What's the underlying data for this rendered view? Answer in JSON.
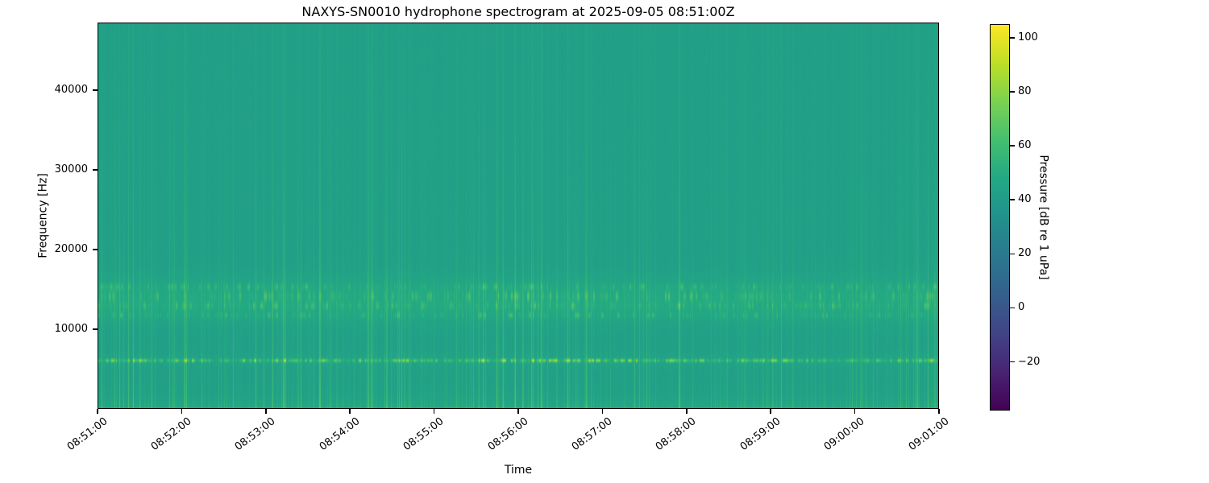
{
  "chart_data": {
    "type": "heatmap",
    "subtype": "spectrogram",
    "title": "NAXYS-SN0010 hydrophone spectrogram at 2025-09-05 08:51:00Z",
    "xlabel": "Time",
    "ylabel": "Frequency [Hz]",
    "x_start": "08:51:00",
    "x_end": "09:01:00",
    "duration_seconds": 600,
    "x_tick_labels": [
      "08:51:00",
      "08:52:00",
      "08:53:00",
      "08:54:00",
      "08:55:00",
      "08:56:00",
      "08:57:00",
      "08:58:00",
      "08:59:00",
      "09:00:00",
      "09:01:00"
    ],
    "y_ticks": [
      10000,
      20000,
      30000,
      40000
    ],
    "y_tick_labels": [
      "10000",
      "20000",
      "30000",
      "40000"
    ],
    "ylim": [
      0,
      48500
    ],
    "grid": false,
    "legend": "none",
    "colorbar": {
      "label": "Pressure [dB re 1 uPa]",
      "position": "right",
      "ticks": [
        100,
        80,
        60,
        40,
        20,
        0,
        -20
      ],
      "tick_labels": [
        "100",
        "80",
        "60",
        "40",
        "20",
        "0",
        "−20"
      ],
      "vmin": -38,
      "vmax": 105
    },
    "colormap": {
      "name": "viridis",
      "stops": [
        [
          0,
          "#440154"
        ],
        [
          0.1,
          "#482475"
        ],
        [
          0.2,
          "#414487"
        ],
        [
          0.3,
          "#355f8d"
        ],
        [
          0.4,
          "#2a788e"
        ],
        [
          0.5,
          "#21918c"
        ],
        [
          0.6,
          "#22a884"
        ],
        [
          0.7,
          "#44bf70"
        ],
        [
          0.8,
          "#7ad151"
        ],
        [
          0.9,
          "#bddf26"
        ],
        [
          1,
          "#fde725"
        ]
      ]
    },
    "background_level_db": 43,
    "features": {
      "description": "Near-uniform ~43 dB teal background; persistent bright tonal line at ~6 kHz; speckled tonal bands between ~11.5 and 15.5 kHz; brighter low-frequency strip below ~1 kHz; broadband vertical transient streaks clustered in time, fading toward high frequency",
      "tonal_bands": [
        {
          "center_hz": 6000,
          "halfwidth_hz": 160,
          "peak_boost_db": 42,
          "diffuse_boost_db": 1.5
        },
        {
          "center_hz": 11700,
          "halfwidth_hz": 260,
          "peak_boost_db": 15,
          "diffuse_boost_db": 1.5
        },
        {
          "center_hz": 12900,
          "halfwidth_hz": 320,
          "peak_boost_db": 18,
          "diffuse_boost_db": 2.0
        },
        {
          "center_hz": 14100,
          "halfwidth_hz": 420,
          "peak_boost_db": 20,
          "diffuse_boost_db": 2.5
        },
        {
          "center_hz": 15300,
          "halfwidth_hz": 280,
          "peak_boost_db": 15,
          "diffuse_boost_db": 1.5
        }
      ],
      "low_band": {
        "cutoff_hz": 900,
        "boost_db": 7
      },
      "transient_max_boost_db": 26,
      "transient_clusters": [
        {
          "time": "08:51:10",
          "strength": 0.7
        },
        {
          "time": "08:51:25",
          "strength": 0.6
        },
        {
          "time": "08:52:00",
          "strength": 0.7
        },
        {
          "time": "08:52:50",
          "strength": 0.6
        },
        {
          "time": "08:53:05",
          "strength": 0.7
        },
        {
          "time": "08:53:30",
          "strength": 1.0
        },
        {
          "time": "08:54:10",
          "strength": 0.6
        },
        {
          "time": "08:54:35",
          "strength": 0.6
        },
        {
          "time": "08:55:35",
          "strength": 0.7
        },
        {
          "time": "08:55:50",
          "strength": 1.0
        },
        {
          "time": "08:56:10",
          "strength": 0.8
        },
        {
          "time": "08:56:30",
          "strength": 1.0
        },
        {
          "time": "08:56:50",
          "strength": 0.7
        },
        {
          "time": "08:57:20",
          "strength": 0.9
        },
        {
          "time": "08:57:50",
          "strength": 0.8
        },
        {
          "time": "08:58:05",
          "strength": 0.9
        },
        {
          "time": "08:58:45",
          "strength": 0.6
        },
        {
          "time": "08:59:05",
          "strength": 0.5
        },
        {
          "time": "08:59:40",
          "strength": 0.5
        },
        {
          "time": "09:00:20",
          "strength": 0.6
        },
        {
          "time": "09:00:55",
          "strength": 0.8
        }
      ],
      "seed": 11
    }
  }
}
